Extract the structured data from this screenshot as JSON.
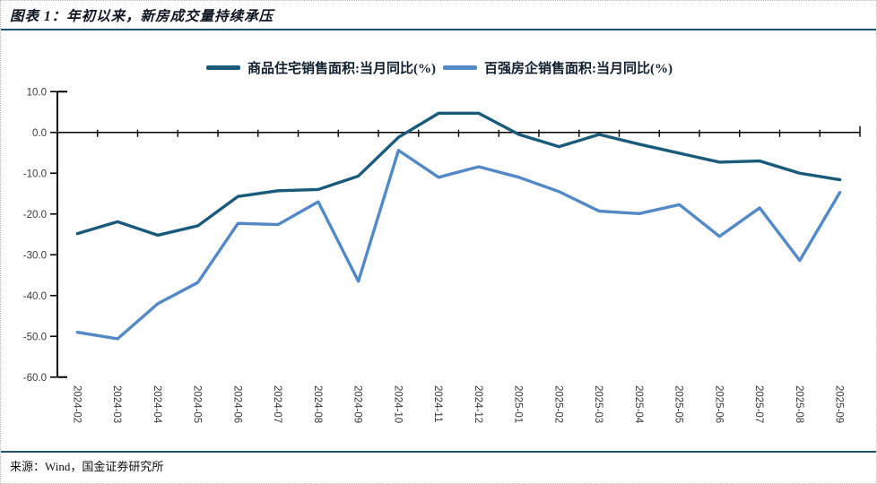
{
  "header": {
    "title": "图表 1：年初以来，新房成交量持续承压"
  },
  "footer": {
    "source": "来源：Wind，国金证券研究所"
  },
  "colors": {
    "series1": "#1A5A7A",
    "series2": "#5389C7",
    "rule": "#1A5574",
    "zero_axis": "#000000",
    "y_axis": "#000000",
    "tick_label": "#3A3A3A"
  },
  "chart_data": {
    "type": "line",
    "title": "图表 1：年初以来，新房成交量持续承压",
    "categories": [
      "2024-02",
      "2024-03",
      "2024-04",
      "2024-05",
      "2024-06",
      "2024-07",
      "2024-08",
      "2024-09",
      "2024-10",
      "2024-11",
      "2024-12",
      "2025-01",
      "2025-02",
      "2025-03",
      "2025-04",
      "2025-05",
      "2025-06",
      "2025-07",
      "2025-08",
      "2025-09"
    ],
    "series": [
      {
        "name": "商品住宅销售面积:当月同比(%)",
        "color": "#1A5A7A",
        "values": [
          -24.8,
          -21.9,
          -25.2,
          -22.9,
          -15.7,
          -14.3,
          -14.0,
          -10.7,
          -1.2,
          4.7,
          4.7,
          -0.5,
          -3.5,
          -0.5,
          -2.9,
          -5.1,
          -7.3,
          -7.0,
          -10.0,
          -11.6
        ]
      },
      {
        "name": "百强房企销售面积:当月同比(%)",
        "color": "#5389C7",
        "values": [
          -49.0,
          -50.6,
          -42.0,
          -36.8,
          -22.3,
          -22.6,
          -17.0,
          -36.5,
          -4.4,
          -11.0,
          -8.4,
          -11.0,
          -14.5,
          -19.3,
          -19.9,
          -17.7,
          -25.5,
          -18.5,
          -31.4,
          -14.7
        ]
      }
    ],
    "ylim": [
      -60,
      10
    ],
    "ytick_step": 10,
    "ytick_labels": [
      "10.0",
      "0.0",
      "-10.0",
      "-20.0",
      "-30.0",
      "-40.0",
      "-50.0",
      "-60.0"
    ],
    "ytick_values": [
      10,
      0,
      -10,
      -20,
      -30,
      -40,
      -50,
      -60
    ],
    "zero_baseline": true,
    "grid": false,
    "legend_position": "top",
    "x_label_rotation_deg": 90
  }
}
